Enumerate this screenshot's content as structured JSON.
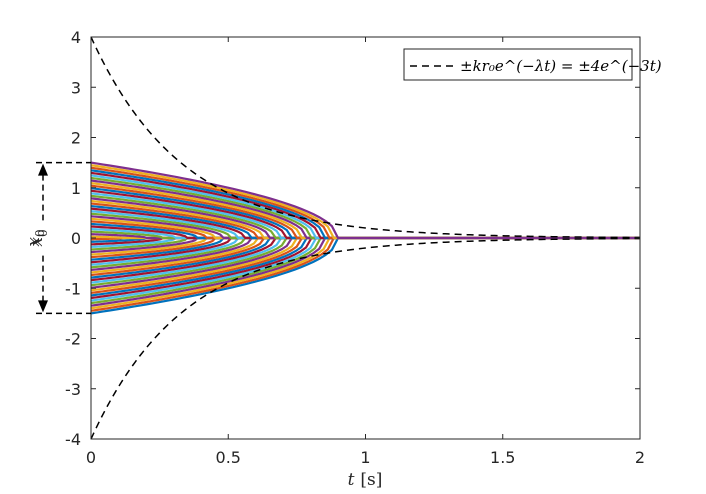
{
  "chart_data": {
    "type": "line",
    "xlabel": {
      "var": "t",
      "unit": "[s]"
    },
    "ylabel": {
      "var": "x",
      "sub": "0"
    },
    "xlim": [
      0,
      2
    ],
    "ylim": [
      -4,
      4
    ],
    "xticks": [
      "0",
      "0.5",
      "1",
      "1.5",
      "2"
    ],
    "yticks": [
      "4",
      "3",
      "2",
      "1",
      "0",
      "-1",
      "-2",
      "-3",
      "-4"
    ],
    "grid": false,
    "legend": {
      "placement": "top-right",
      "entries": [
        {
          "label": "±kr₀e^(−λt) = ±4e^(−3t)",
          "style": "dashed",
          "color": "#000000"
        }
      ]
    },
    "envelope": {
      "k_r0": 4,
      "lambda": 3
    },
    "trajectories": {
      "count": 60,
      "x0_range": [
        -1.5,
        1.5
      ],
      "convergence_time_at_max": 0.9,
      "colors": [
        "#0072BD",
        "#D95319",
        "#EDB120",
        "#7E2F8E",
        "#77AC30",
        "#4DBEEE",
        "#A2142F"
      ]
    },
    "annotation": {
      "label": {
        "var": "x",
        "sub": "0"
      },
      "y_top": 1.5,
      "y_bottom": -1.5,
      "style": "double-arrow dashed bracket"
    }
  }
}
